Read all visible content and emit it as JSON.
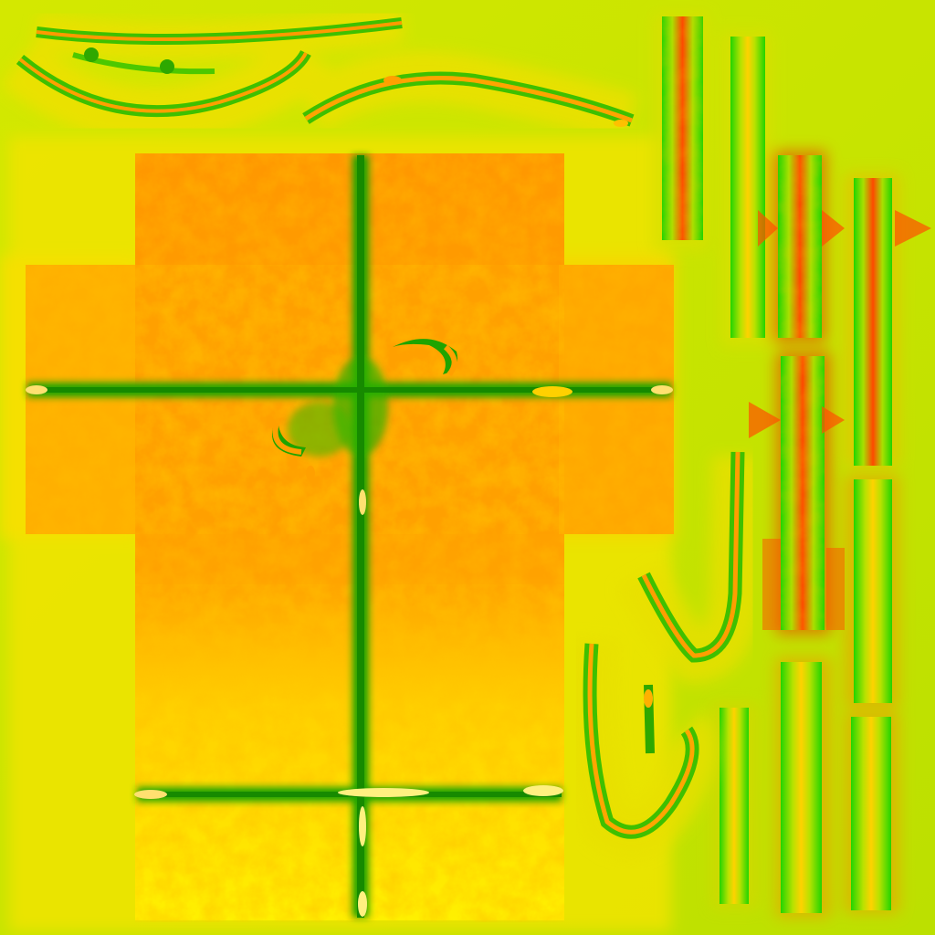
{
  "texture": {
    "colors": {
      "background": "#b8e000",
      "background_warm": "#e8e000",
      "panel_orange": "#ff9a00",
      "panel_yellow": "#ffe800",
      "seam_green": "#1fa800",
      "seam_bright_green": "#4cff00",
      "strip_red": "#ff4a00",
      "strip_yellow": "#ffd000"
    },
    "icons": [
      "branch-vine-icon",
      "cross-seam-icon",
      "strip-icon",
      "hook-curve-icon"
    ]
  }
}
